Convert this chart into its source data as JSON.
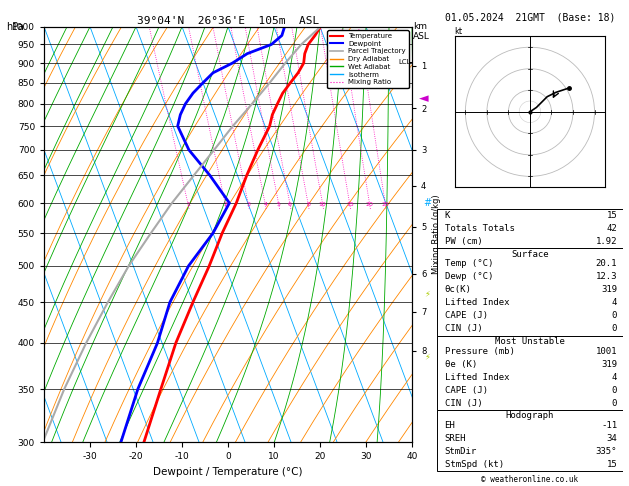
{
  "title_left": "39°04'N  26°36'E  105m  ASL",
  "title_right": "01.05.2024  21GMT  (Base: 18)",
  "xlabel": "Dewpoint / Temperature (°C)",
  "pressure_levels": [
    300,
    350,
    400,
    450,
    500,
    550,
    600,
    650,
    700,
    750,
    800,
    850,
    900,
    950,
    1000
  ],
  "km_ticks": [
    1,
    2,
    3,
    4,
    5,
    6,
    7,
    8
  ],
  "km_pressures": [
    893,
    790,
    700,
    631,
    560,
    489,
    438,
    391
  ],
  "mixing_ratio_labels": [
    1,
    2,
    3,
    4,
    5,
    6,
    8,
    10,
    15,
    20,
    25
  ],
  "temperature_profile": {
    "pressure": [
      1000,
      975,
      950,
      925,
      900,
      875,
      850,
      825,
      800,
      775,
      750,
      700,
      650,
      600,
      550,
      500,
      450,
      400,
      350,
      300
    ],
    "temp": [
      20.1,
      18.2,
      16.0,
      14.5,
      13.5,
      11.5,
      9.0,
      6.5,
      4.5,
      2.5,
      1.0,
      -3.5,
      -8.0,
      -12.5,
      -18.0,
      -23.5,
      -30.0,
      -37.0,
      -44.0,
      -52.0
    ],
    "color": "#ff0000",
    "linewidth": 2.0
  },
  "dewpoint_profile": {
    "pressure": [
      1000,
      975,
      950,
      925,
      900,
      875,
      850,
      825,
      800,
      775,
      750,
      700,
      650,
      600,
      550,
      500,
      450,
      400,
      350,
      300
    ],
    "temp": [
      12.3,
      11.0,
      8.0,
      2.0,
      -2.0,
      -7.0,
      -10.0,
      -13.0,
      -15.5,
      -17.5,
      -19.0,
      -18.5,
      -16.0,
      -14.0,
      -20.0,
      -28.0,
      -35.0,
      -41.0,
      -49.0,
      -57.0
    ],
    "color": "#0000ff",
    "linewidth": 2.0
  },
  "parcel_profile": {
    "pressure": [
      1000,
      950,
      900,
      850,
      800,
      750,
      700,
      650,
      600,
      550,
      500,
      450,
      400,
      350,
      300
    ],
    "temp": [
      20.1,
      14.5,
      9.5,
      4.5,
      -1.0,
      -7.0,
      -13.0,
      -19.5,
      -26.5,
      -33.5,
      -41.0,
      -48.5,
      -56.5,
      -65.0,
      -74.0
    ],
    "color": "#aaaaaa",
    "linewidth": 1.5
  },
  "lcl_pressure": 902,
  "isotherms_color": "#00aaff",
  "dry_adiabats_color": "#ff8800",
  "wet_adiabats_color": "#00aa00",
  "mixing_ratio_color": "#ff00bb",
  "legend_items": [
    {
      "label": "Temperature",
      "color": "#ff0000",
      "lw": 1.5,
      "ls": "-"
    },
    {
      "label": "Dewpoint",
      "color": "#0000ff",
      "lw": 1.5,
      "ls": "-"
    },
    {
      "label": "Parcel Trajectory",
      "color": "#aaaaaa",
      "lw": 1.2,
      "ls": "-"
    },
    {
      "label": "Dry Adiabat",
      "color": "#ff8800",
      "lw": 1.0,
      "ls": "-"
    },
    {
      "label": "Wet Adiabat",
      "color": "#00aa00",
      "lw": 1.0,
      "ls": "-"
    },
    {
      "label": "Isotherm",
      "color": "#00aaff",
      "lw": 1.0,
      "ls": "-"
    },
    {
      "label": "Mixing Ratio",
      "color": "#ff00bb",
      "lw": 0.8,
      "ls": ":"
    }
  ],
  "stats_rows": [
    [
      "K",
      "15",
      false
    ],
    [
      "Totals Totals",
      "42",
      false
    ],
    [
      "PW (cm)",
      "1.92",
      false
    ],
    [
      "Surface",
      "",
      true
    ],
    [
      "Temp (°C)",
      "20.1",
      false
    ],
    [
      "Dewp (°C)",
      "12.3",
      false
    ],
    [
      "θc(K)",
      "319",
      false
    ],
    [
      "Lifted Index",
      "4",
      false
    ],
    [
      "CAPE (J)",
      "0",
      false
    ],
    [
      "CIN (J)",
      "0",
      false
    ],
    [
      "Most Unstable",
      "",
      true
    ],
    [
      "Pressure (mb)",
      "1001",
      false
    ],
    [
      "θe (K)",
      "319",
      false
    ],
    [
      "Lifted Index",
      "4",
      false
    ],
    [
      "CAPE (J)",
      "0",
      false
    ],
    [
      "CIN (J)",
      "0",
      false
    ],
    [
      "Hodograph",
      "",
      true
    ],
    [
      "EH",
      "-11",
      false
    ],
    [
      "SREH",
      "34",
      false
    ],
    [
      "StmDir",
      "335°",
      false
    ],
    [
      "StmSpd (kt)",
      "15",
      false
    ]
  ],
  "hodo_u": [
    0,
    3,
    5,
    8,
    12,
    18
  ],
  "hodo_v": [
    0,
    2,
    4,
    7,
    9,
    11
  ],
  "hodo_storm_u": 10,
  "hodo_storm_v": 5
}
